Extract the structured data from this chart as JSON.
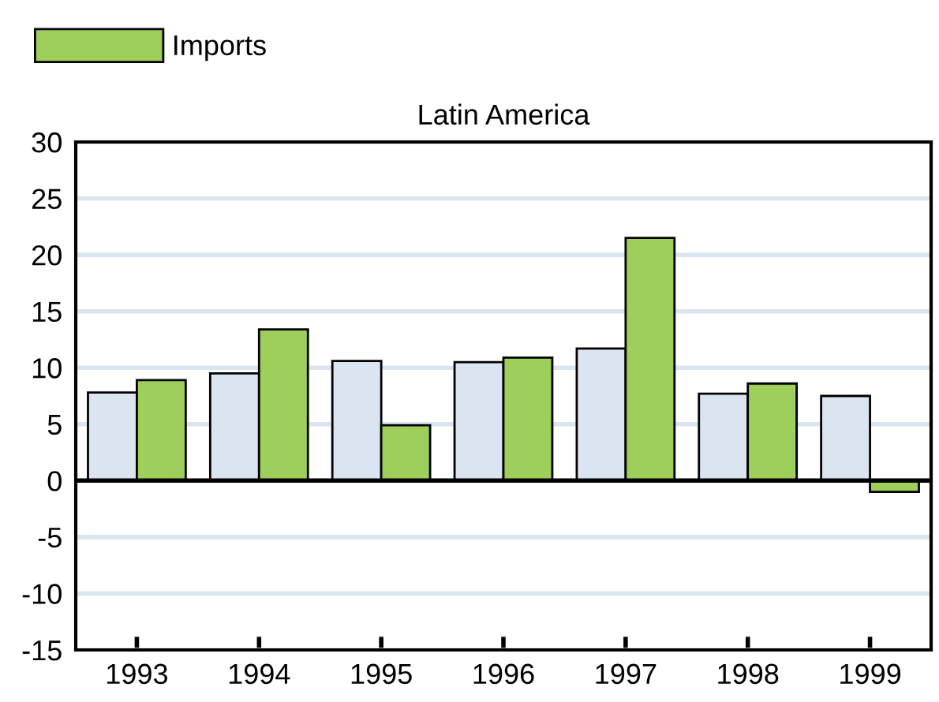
{
  "chart_data": {
    "type": "bar",
    "title": "Latin America",
    "categories": [
      "1993",
      "1994",
      "1995",
      "1996",
      "1997",
      "1998",
      "1999"
    ],
    "series": [
      {
        "color": "#dbe5f1",
        "values": [
          7.8,
          9.5,
          10.6,
          10.5,
          11.7,
          7.7,
          7.5
        ]
      },
      {
        "name": "Imports",
        "color": "#9dcf5a",
        "values": [
          8.9,
          13.4,
          4.9,
          10.9,
          21.5,
          8.6,
          -1.0
        ]
      }
    ],
    "ylim": [
      -15,
      30
    ],
    "yticks": [
      -15,
      -10,
      -5,
      0,
      5,
      10,
      15,
      20,
      25,
      30
    ],
    "grid": "y",
    "legend": "top left"
  }
}
